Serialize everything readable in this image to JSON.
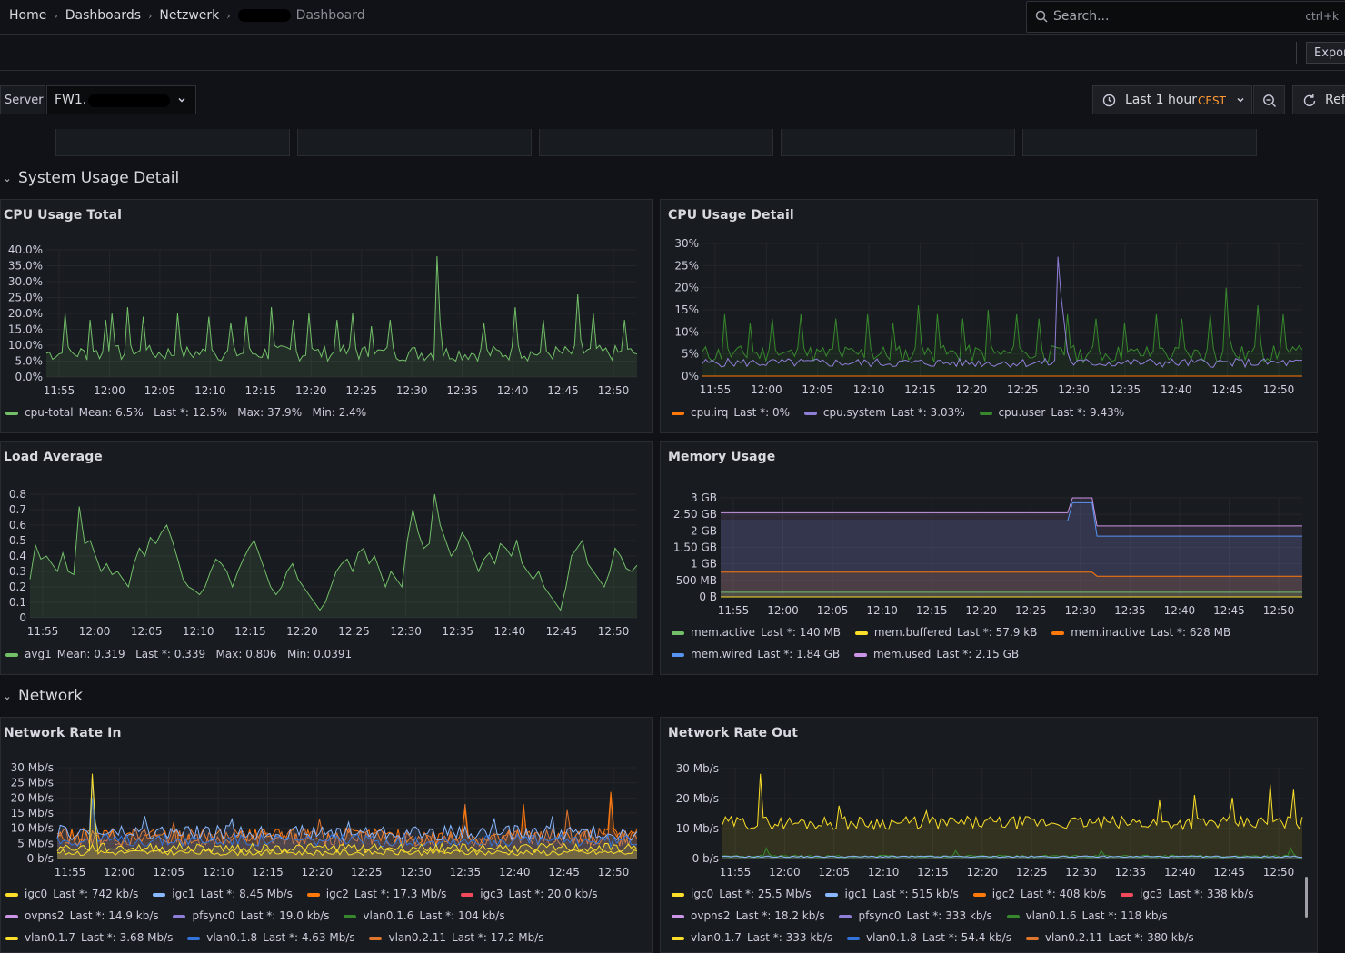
{
  "breadcrumb": {
    "home": "Home",
    "dashboards": "Dashboards",
    "folder": "Netzwerk",
    "dashboard": "Dashboard"
  },
  "search": {
    "placeholder": "Search...",
    "shortcut": "ctrl+k"
  },
  "toolbar": {
    "export_label": "Export"
  },
  "variables": {
    "server_label": "Server",
    "server_value": "FW1."
  },
  "time_picker": {
    "range": "Last 1 hour",
    "timezone": "CEST",
    "refresh_label": "Refresh"
  },
  "icons": {
    "search": "search-icon",
    "chevron": "chevron-down-icon",
    "clock": "clock-icon",
    "zoom_out": "zoom-out-icon",
    "refresh": "refresh-icon",
    "collapse": "chevron-down-icon"
  },
  "colors": {
    "green": "#73bf69",
    "orange": "#ff780a",
    "purple": "#8f7ed8",
    "yellow": "#fade2a",
    "blue": "#5794f2",
    "violet": "#ca95e5",
    "red": "#f2495c",
    "dark_green": "#37872d",
    "dark_orange": "#e0752d",
    "dark_blue": "#3274d9",
    "light_blue": "#8ab8ff"
  },
  "rows": {
    "system_usage": "System Usage Detail",
    "network": "Network"
  },
  "panels": {
    "cpu_total": {
      "title": "CPU Usage Total",
      "legend": [
        {
          "name": "cpu-total",
          "color": "#73bf69",
          "stats": "Mean: 6.5%   Last *: 12.5%   Max: 37.9%   Min: 2.4%"
        }
      ]
    },
    "cpu_detail": {
      "title": "CPU Usage Detail",
      "legend": [
        {
          "name": "cpu.irq",
          "color": "#ff780a",
          "stats": "Last *: 0%"
        },
        {
          "name": "cpu.system",
          "color": "#8f7ed8",
          "stats": "Last *: 3.03%"
        },
        {
          "name": "cpu.user",
          "color": "#37872d",
          "stats": "Last *: 9.43%"
        }
      ]
    },
    "load_avg": {
      "title": "Load Average",
      "legend": [
        {
          "name": "avg1",
          "color": "#73bf69",
          "stats": "Mean: 0.319   Last *: 0.339   Max: 0.806   Min: 0.0391"
        }
      ]
    },
    "memory": {
      "title": "Memory Usage",
      "legend_row1": [
        {
          "name": "mem.active",
          "color": "#73bf69",
          "stats": "Last *: 140 MB"
        },
        {
          "name": "mem.buffered",
          "color": "#fade2a",
          "stats": "Last *: 57.9 kB"
        },
        {
          "name": "mem.inactive",
          "color": "#ff780a",
          "stats": "Last *: 628 MB"
        }
      ],
      "legend_row2": [
        {
          "name": "mem.wired",
          "color": "#5794f2",
          "stats": "Last *: 1.84 GB"
        },
        {
          "name": "mem.used",
          "color": "#ca95e5",
          "stats": "Last *: 2.15 GB"
        }
      ]
    },
    "net_in": {
      "title": "Network Rate In",
      "legend_row1": [
        {
          "name": "igc0",
          "color": "#fade2a",
          "stats": "Last *: 742 kb/s"
        },
        {
          "name": "igc1",
          "color": "#8ab8ff",
          "stats": "Last *: 8.45 Mb/s"
        },
        {
          "name": "igc2",
          "color": "#ff780a",
          "stats": "Last *: 17.3 Mb/s"
        },
        {
          "name": "igc3",
          "color": "#f2495c",
          "stats": "Last *: 20.0 kb/s"
        }
      ],
      "legend_row2": [
        {
          "name": "ovpns2",
          "color": "#ca95e5",
          "stats": "Last *: 14.9 kb/s"
        },
        {
          "name": "pfsync0",
          "color": "#8f7ed8",
          "stats": "Last *: 19.0 kb/s"
        },
        {
          "name": "vlan0.1.6",
          "color": "#37872d",
          "stats": "Last *: 104 kb/s"
        }
      ],
      "legend_row3": [
        {
          "name": "vlan0.1.7",
          "color": "#fade2a",
          "stats": "Last *: 3.68 Mb/s"
        },
        {
          "name": "vlan0.1.8",
          "color": "#3274d9",
          "stats": "Last *: 4.63 Mb/s"
        },
        {
          "name": "vlan0.2.11",
          "color": "#e0752d",
          "stats": "Last *: 17.2 Mb/s"
        }
      ]
    },
    "net_out": {
      "title": "Network Rate Out",
      "legend_row1": [
        {
          "name": "igc0",
          "color": "#fade2a",
          "stats": "Last *: 25.5 Mb/s"
        },
        {
          "name": "igc1",
          "color": "#8ab8ff",
          "stats": "Last *: 515 kb/s"
        },
        {
          "name": "igc2",
          "color": "#ff780a",
          "stats": "Last *: 408 kb/s"
        },
        {
          "name": "igc3",
          "color": "#f2495c",
          "stats": "Last *: 338 kb/s"
        }
      ],
      "legend_row2": [
        {
          "name": "ovpns2",
          "color": "#ca95e5",
          "stats": "Last *: 18.2 kb/s"
        },
        {
          "name": "pfsync0",
          "color": "#8f7ed8",
          "stats": "Last *: 333 kb/s"
        },
        {
          "name": "vlan0.1.6",
          "color": "#37872d",
          "stats": "Last *: 118 kb/s"
        }
      ],
      "legend_row3": [
        {
          "name": "vlan0.1.7",
          "color": "#fade2a",
          "stats": "Last *: 333 kb/s"
        },
        {
          "name": "vlan0.1.8",
          "color": "#3274d9",
          "stats": "Last *: 54.4 kb/s"
        },
        {
          "name": "vlan0.2.11",
          "color": "#e0752d",
          "stats": "Last *: 380 kb/s"
        }
      ]
    }
  },
  "chart_data": [
    {
      "type": "line",
      "title": "CPU Usage Total",
      "x_ticks": [
        "11:55",
        "12:00",
        "12:05",
        "12:10",
        "12:15",
        "12:20",
        "12:25",
        "12:30",
        "12:35",
        "12:40",
        "12:45",
        "12:50"
      ],
      "y_ticks": [
        "0.0%",
        "5.0%",
        "10.0%",
        "15.0%",
        "20.0%",
        "25.0%",
        "30.0%",
        "35.0%",
        "40.0%"
      ],
      "ylim": [
        0,
        40
      ],
      "series": [
        {
          "name": "cpu-total",
          "color": "#73bf69",
          "base": 5,
          "noise": 5,
          "spikes": [
            [
              6,
              20
            ],
            [
              14,
              18
            ],
            [
              19,
              18
            ],
            [
              21,
              20
            ],
            [
              26,
              22
            ],
            [
              31,
              19
            ],
            [
              42,
              20
            ],
            [
              52,
              19
            ],
            [
              59,
              17
            ],
            [
              64,
              19
            ],
            [
              72,
              22
            ],
            [
              79,
              18
            ],
            [
              84,
              20
            ],
            [
              93,
              18
            ],
            [
              98,
              20
            ],
            [
              104,
              16
            ],
            [
              110,
              18
            ],
            [
              125,
              38
            ],
            [
              140,
              17
            ],
            [
              150,
              22
            ],
            [
              159,
              18
            ],
            [
              170,
              26
            ],
            [
              175,
              20
            ],
            [
              185,
              18
            ]
          ]
        }
      ]
    },
    {
      "type": "line",
      "title": "CPU Usage Detail",
      "x_ticks": [
        "11:55",
        "12:00",
        "12:05",
        "12:10",
        "12:15",
        "12:20",
        "12:25",
        "12:30",
        "12:35",
        "12:40",
        "12:45",
        "12:50"
      ],
      "y_ticks": [
        "0%",
        "5%",
        "10%",
        "15%",
        "20%",
        "25%",
        "30%"
      ],
      "ylim": [
        0,
        30
      ],
      "series": [
        {
          "name": "cpu.user",
          "color": "#37872d",
          "base": 3,
          "noise": 4,
          "spikes": [
            [
              7,
              14
            ],
            [
              15,
              12
            ],
            [
              22,
              13
            ],
            [
              31,
              14
            ],
            [
              42,
              13
            ],
            [
              52,
              14
            ],
            [
              60,
              12
            ],
            [
              68,
              16
            ],
            [
              74,
              14
            ],
            [
              82,
              13
            ],
            [
              90,
              15
            ],
            [
              99,
              14
            ],
            [
              106,
              13
            ],
            [
              115,
              14
            ],
            [
              124,
              13
            ],
            [
              133,
              12
            ],
            [
              143,
              14
            ],
            [
              151,
              13
            ],
            [
              160,
              14
            ],
            [
              165,
              20
            ],
            [
              175,
              16
            ],
            [
              183,
              14
            ]
          ]
        },
        {
          "name": "cpu.system",
          "color": "#8f7ed8",
          "base": 2,
          "noise": 2,
          "spikes": [
            [
              112,
              27
            ],
            [
              113,
              18
            ],
            [
              114,
              12
            ]
          ]
        },
        {
          "name": "cpu.irq",
          "color": "#ff780a",
          "base": 0,
          "noise": 0,
          "spikes": []
        }
      ]
    },
    {
      "type": "area",
      "title": "Load Average",
      "x_ticks": [
        "11:55",
        "12:00",
        "12:05",
        "12:10",
        "12:15",
        "12:20",
        "12:25",
        "12:30",
        "12:35",
        "12:40",
        "12:45",
        "12:50"
      ],
      "y_ticks": [
        "0",
        "0.1",
        "0.2",
        "0.3",
        "0.4",
        "0.5",
        "0.6",
        "0.7",
        "0.8"
      ],
      "ylim": [
        0,
        0.85
      ],
      "series": [
        {
          "name": "avg1",
          "color": "#73bf69",
          "points": [
            0.25,
            0.47,
            0.38,
            0.4,
            0.35,
            0.3,
            0.42,
            0.3,
            0.28,
            0.72,
            0.48,
            0.5,
            0.4,
            0.3,
            0.35,
            0.28,
            0.3,
            0.25,
            0.2,
            0.35,
            0.45,
            0.4,
            0.52,
            0.48,
            0.55,
            0.6,
            0.5,
            0.38,
            0.25,
            0.2,
            0.18,
            0.15,
            0.2,
            0.3,
            0.38,
            0.35,
            0.3,
            0.2,
            0.3,
            0.38,
            0.45,
            0.5,
            0.4,
            0.3,
            0.2,
            0.15,
            0.2,
            0.3,
            0.35,
            0.25,
            0.2,
            0.15,
            0.1,
            0.05,
            0.1,
            0.2,
            0.3,
            0.35,
            0.38,
            0.3,
            0.42,
            0.45,
            0.35,
            0.4,
            0.3,
            0.2,
            0.3,
            0.25,
            0.2,
            0.5,
            0.7,
            0.55,
            0.45,
            0.48,
            0.8,
            0.6,
            0.5,
            0.4,
            0.45,
            0.55,
            0.5,
            0.4,
            0.3,
            0.38,
            0.42,
            0.35,
            0.48,
            0.45,
            0.4,
            0.5,
            0.35,
            0.3,
            0.25,
            0.3,
            0.2,
            0.15,
            0.1,
            0.05,
            0.2,
            0.4,
            0.45,
            0.5,
            0.35,
            0.3,
            0.25,
            0.2,
            0.3,
            0.45,
            0.4,
            0.32,
            0.3,
            0.34
          ]
        }
      ]
    },
    {
      "type": "area",
      "title": "Memory Usage",
      "x_ticks": [
        "11:55",
        "12:00",
        "12:05",
        "12:10",
        "12:15",
        "12:20",
        "12:25",
        "12:30",
        "12:35",
        "12:40",
        "12:45",
        "12:50"
      ],
      "y_ticks": [
        "0 B",
        "500 MB",
        "1 GB",
        "1.50 GB",
        "2 GB",
        "2.50 GB",
        "3 GB"
      ],
      "ylim": [
        0,
        3.0
      ],
      "series": [
        {
          "name": "mem.used",
          "color": "#ca95e5",
          "level_before": 2.55,
          "peak": 3.05,
          "level_after": 2.15,
          "step_at": 0.625
        },
        {
          "name": "mem.wired",
          "color": "#5794f2",
          "level_before": 2.3,
          "peak": 2.85,
          "level_after": 1.84,
          "step_at": 0.625
        },
        {
          "name": "mem.inactive",
          "color": "#ff780a",
          "level_before": 0.75,
          "peak": 0.75,
          "level_after": 0.628,
          "step_at": 0.625
        },
        {
          "name": "mem.active",
          "color": "#73bf69",
          "level_before": 0.14,
          "peak": 0.14,
          "level_after": 0.14,
          "step_at": 0.625
        },
        {
          "name": "mem.buffered",
          "color": "#fade2a",
          "level_before": 0.0,
          "peak": 0.0,
          "level_after": 0.0,
          "step_at": 0.625
        }
      ]
    },
    {
      "type": "area",
      "title": "Network Rate In",
      "x_ticks": [
        "11:55",
        "12:00",
        "12:05",
        "12:10",
        "12:15",
        "12:20",
        "12:25",
        "12:30",
        "12:35",
        "12:40",
        "12:45",
        "12:50"
      ],
      "y_ticks": [
        "0 b/s",
        "5 Mb/s",
        "10 Mb/s",
        "15 Mb/s",
        "20 Mb/s",
        "25 Mb/s",
        "30 Mb/s"
      ],
      "ylim": [
        0,
        30
      ],
      "series": [
        {
          "name": "vlan0.2.11",
          "color": "#e0752d",
          "base": 4,
          "noise": 6,
          "spikes": [
            [
              3,
              10
            ],
            [
              40,
              12
            ],
            [
              90,
              13
            ],
            [
              140,
              18
            ],
            [
              160,
              17
            ],
            [
              175,
              16
            ],
            [
              190,
              20
            ]
          ]
        },
        {
          "name": "igc2",
          "color": "#ff780a",
          "base": 4,
          "noise": 6,
          "spikes": [
            [
              140,
              16
            ],
            [
              160,
              18
            ],
            [
              190,
              22
            ]
          ]
        },
        {
          "name": "igc1",
          "color": "#8ab8ff",
          "base": 6,
          "noise": 5,
          "spikes": [
            [
              12,
              27
            ],
            [
              30,
              14
            ],
            [
              60,
              13
            ],
            [
              100,
              12
            ],
            [
              150,
              13
            ],
            [
              170,
              14
            ]
          ]
        },
        {
          "name": "vlan0.1.8",
          "color": "#3274d9",
          "base": 4,
          "noise": 4,
          "spikes": [
            [
              12,
              20
            ]
          ]
        },
        {
          "name": "igc0",
          "color": "#fade2a",
          "base": 1,
          "noise": 2,
          "spikes": [
            [
              12,
              28
            ]
          ]
        },
        {
          "name": "vlan0.1.7",
          "color": "#fade2a",
          "base": 2,
          "noise": 3,
          "spikes": []
        }
      ]
    },
    {
      "type": "area",
      "title": "Network Rate Out",
      "x_ticks": [
        "11:55",
        "12:00",
        "12:05",
        "12:10",
        "12:15",
        "12:20",
        "12:25",
        "12:30",
        "12:35",
        "12:40",
        "12:45",
        "12:50"
      ],
      "y_ticks": [
        "0 b/s",
        "10 Mb/s",
        "20 Mb/s",
        "30 Mb/s"
      ],
      "ylim": [
        0,
        34
      ],
      "series": [
        {
          "name": "igc0",
          "color": "#fade2a",
          "base": 11,
          "noise": 5,
          "spikes": [
            [
              13,
              32
            ],
            [
              40,
              20
            ],
            [
              70,
              18
            ],
            [
              150,
              22
            ],
            [
              162,
              24
            ],
            [
              175,
              23
            ],
            [
              188,
              28
            ],
            [
              196,
              26
            ]
          ]
        },
        {
          "name": "vlan0.1.6",
          "color": "#37872d",
          "base": 0.3,
          "noise": 1,
          "spikes": [
            [
              15,
              4
            ],
            [
              80,
              3
            ],
            [
              130,
              3
            ],
            [
              195,
              4
            ]
          ]
        },
        {
          "name": "igc1",
          "color": "#8ab8ff",
          "base": 0.4,
          "noise": 0.6,
          "spikes": []
        }
      ]
    }
  ]
}
